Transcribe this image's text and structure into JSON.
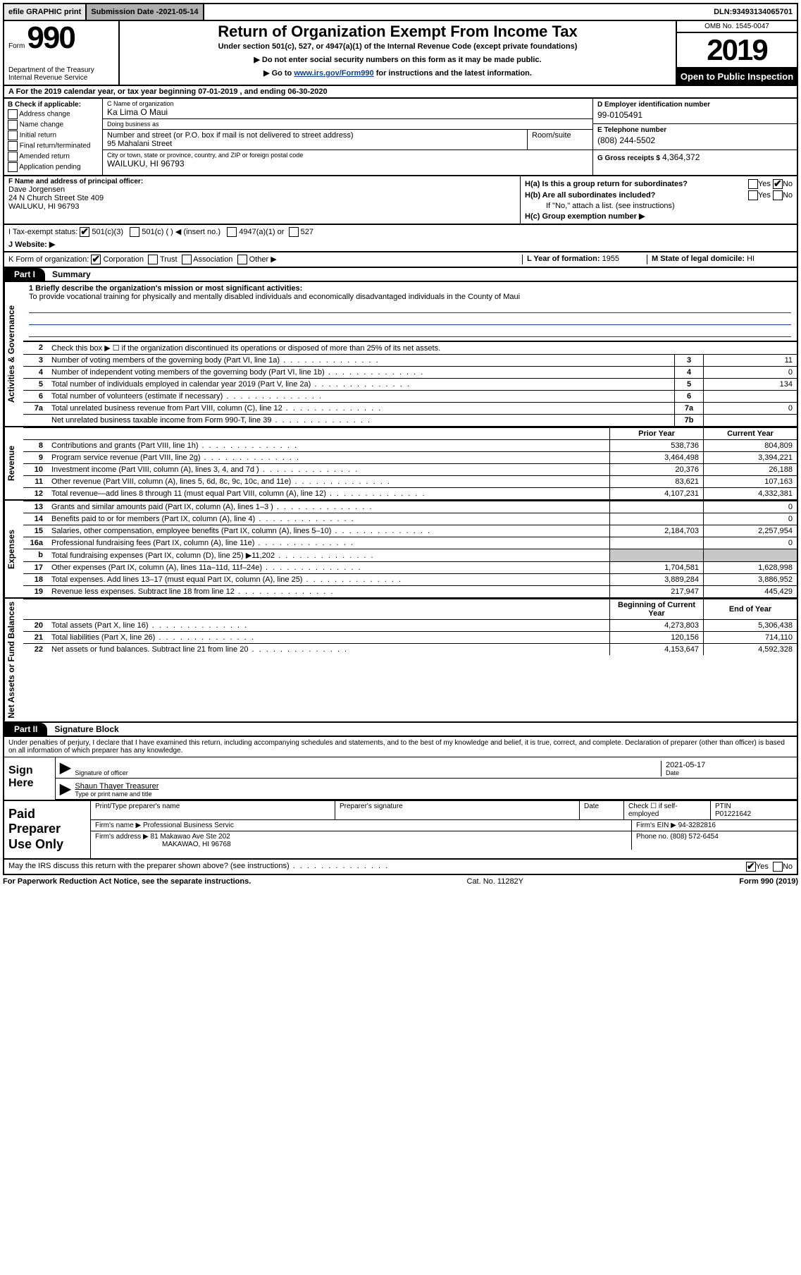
{
  "topbar": {
    "efile": "efile GRAPHIC print",
    "subdate_label": "Submission Date - ",
    "subdate": "2021-05-14",
    "dln_label": "DLN: ",
    "dln": "93493134065701"
  },
  "header": {
    "form_label": "Form",
    "form_number": "990",
    "dept": "Department of the Treasury\nInternal Revenue Service",
    "title": "Return of Organization Exempt From Income Tax",
    "sub": "Under section 501(c), 527, or 4947(a)(1) of the Internal Revenue Code (except private foundations)",
    "note1": "▶ Do not enter social security numbers on this form as it may be made public.",
    "note2_prefix": "▶ Go to ",
    "note2_link": "www.irs.gov/Form990",
    "note2_suffix": " for instructions and the latest information.",
    "omb": "OMB No. 1545-0047",
    "year": "2019",
    "inspect": "Open to Public Inspection"
  },
  "ty_line": "A For the 2019 calendar year, or tax year beginning 07-01-2019     , and ending 06-30-2020",
  "section_b": {
    "label": "B Check if applicable:",
    "items": [
      "Address change",
      "Name change",
      "Initial return",
      "Final return/terminated",
      "Amended return",
      "Application pending"
    ]
  },
  "section_c": {
    "name_label": "C Name of organization",
    "name": "Ka Lima O Maui",
    "dba_label": "Doing business as",
    "dba": "",
    "street_label": "Number and street (or P.O. box if mail is not delivered to street address)",
    "street": "95 Mahalani Street",
    "room_label": "Room/suite",
    "city_label": "City or town, state or province, country, and ZIP or foreign postal code",
    "city": "WAILUKU, HI  96793"
  },
  "section_d": {
    "label": "D Employer identification number",
    "value": "99-0105491"
  },
  "section_e": {
    "label": "E Telephone number",
    "value": "(808) 244-5502"
  },
  "section_g": {
    "label": "G Gross receipts $",
    "value": "4,364,372"
  },
  "section_f": {
    "label": "F  Name and address of principal officer:",
    "name": "Dave Jorgensen",
    "addr1": "24 N Church Street Ste 409",
    "addr2": "WAILUKU, HI  96793"
  },
  "section_h": {
    "ha_label": "H(a)  Is this a group return for subordinates?",
    "ha_yes": false,
    "ha_no": true,
    "hb_label": "H(b)  Are all subordinates included?",
    "hb_note": "If \"No,\" attach a list. (see instructions)",
    "hc_label": "H(c)  Group exemption number ▶"
  },
  "section_i": {
    "label": "I    Tax-exempt status:",
    "opts": [
      "501(c)(3)",
      "501(c) (  ) ◀ (insert no.)",
      "4947(a)(1) or",
      "527"
    ],
    "checked_index": 0
  },
  "section_j": {
    "label": "J    Website: ▶",
    "value": ""
  },
  "section_k": {
    "label": "K Form of organization:",
    "opts": [
      "Corporation",
      "Trust",
      "Association",
      "Other ▶"
    ],
    "checked_index": 0
  },
  "section_l": {
    "label": "L Year of formation:",
    "value": "1955"
  },
  "section_m": {
    "label": "M State of legal domicile:",
    "value": "HI"
  },
  "parts": {
    "part1": "Part I",
    "part1_title": "Summary",
    "part2": "Part II",
    "part2_title": "Signature Block"
  },
  "sidebars": {
    "gov": "Activities & Governance",
    "rev": "Revenue",
    "exp": "Expenses",
    "net": "Net Assets or Fund Balances"
  },
  "mission": {
    "label": "1   Briefly describe the organization's mission or most significant activities:",
    "text": "To provide vocational training for physically and mentally disabled individuals and economically disadvantaged individuals in the County of Maui"
  },
  "gov_lines": {
    "l2": "Check this box ▶ ☐  if the organization discontinued its operations or disposed of more than 25% of its net assets.",
    "l3": {
      "txt": "Number of voting members of the governing body (Part VI, line 1a)",
      "n": "3",
      "v": "11"
    },
    "l4": {
      "txt": "Number of independent voting members of the governing body (Part VI, line 1b)",
      "n": "4",
      "v": "0"
    },
    "l5": {
      "txt": "Total number of individuals employed in calendar year 2019 (Part V, line 2a)",
      "n": "5",
      "v": "134"
    },
    "l6": {
      "txt": "Total number of volunteers (estimate if necessary)",
      "n": "6",
      "v": ""
    },
    "l7a": {
      "txt": "Total unrelated business revenue from Part VIII, column (C), line 12",
      "n": "7a",
      "v": "0"
    },
    "l7b": {
      "txt": "Net unrelated business taxable income from Form 990-T, line 39",
      "n": "7b",
      "v": ""
    }
  },
  "col_hdrs": {
    "prior": "Prior Year",
    "current": "Current Year",
    "boy": "Beginning of Current Year",
    "eoy": "End of Year"
  },
  "rev_lines": [
    {
      "ln": "8",
      "txt": "Contributions and grants (Part VIII, line 1h)",
      "py": "538,736",
      "cy": "804,809"
    },
    {
      "ln": "9",
      "txt": "Program service revenue (Part VIII, line 2g)",
      "py": "3,464,498",
      "cy": "3,394,221"
    },
    {
      "ln": "10",
      "txt": "Investment income (Part VIII, column (A), lines 3, 4, and 7d )",
      "py": "20,376",
      "cy": "26,188"
    },
    {
      "ln": "11",
      "txt": "Other revenue (Part VIII, column (A), lines 5, 6d, 8c, 9c, 10c, and 11e)",
      "py": "83,621",
      "cy": "107,163"
    },
    {
      "ln": "12",
      "txt": "Total revenue—add lines 8 through 11 (must equal Part VIII, column (A), line 12)",
      "py": "4,107,231",
      "cy": "4,332,381"
    }
  ],
  "exp_lines": [
    {
      "ln": "13",
      "txt": "Grants and similar amounts paid (Part IX, column (A), lines 1–3 )",
      "py": "",
      "cy": "0"
    },
    {
      "ln": "14",
      "txt": "Benefits paid to or for members (Part IX, column (A), line 4)",
      "py": "",
      "cy": "0"
    },
    {
      "ln": "15",
      "txt": "Salaries, other compensation, employee benefits (Part IX, column (A), lines 5–10)",
      "py": "2,184,703",
      "cy": "2,257,954"
    },
    {
      "ln": "16a",
      "txt": "Professional fundraising fees (Part IX, column (A), line 11e)",
      "py": "",
      "cy": "0"
    },
    {
      "ln": "b",
      "txt": "Total fundraising expenses (Part IX, column (D), line 25) ▶11,202",
      "py": "GREY",
      "cy": "GREY"
    },
    {
      "ln": "17",
      "txt": "Other expenses (Part IX, column (A), lines 11a–11d, 11f–24e)",
      "py": "1,704,581",
      "cy": "1,628,998"
    },
    {
      "ln": "18",
      "txt": "Total expenses. Add lines 13–17 (must equal Part IX, column (A), line 25)",
      "py": "3,889,284",
      "cy": "3,886,952"
    },
    {
      "ln": "19",
      "txt": "Revenue less expenses. Subtract line 18 from line 12",
      "py": "217,947",
      "cy": "445,429"
    }
  ],
  "net_lines": [
    {
      "ln": "20",
      "txt": "Total assets (Part X, line 16)",
      "py": "4,273,803",
      "cy": "5,306,438"
    },
    {
      "ln": "21",
      "txt": "Total liabilities (Part X, line 26)",
      "py": "120,156",
      "cy": "714,110"
    },
    {
      "ln": "22",
      "txt": "Net assets or fund balances. Subtract line 21 from line 20",
      "py": "4,153,647",
      "cy": "4,592,328"
    }
  ],
  "sig": {
    "decl": "Under penalties of perjury, I declare that I have examined this return, including accompanying schedules and statements, and to the best of my knowledge and belief, it is true, correct, and complete. Declaration of preparer (other than officer) is based on all information of which preparer has any knowledge.",
    "sign_here": "Sign Here",
    "sig_label": "Signature of officer",
    "date_label": "Date",
    "date": "2021-05-17",
    "name": "Shaun Thayer Treasurer",
    "name_label": "Type or print name and title"
  },
  "prep": {
    "title": "Paid Preparer Use Only",
    "name_label": "Print/Type preparer's name",
    "sig_label": "Preparer's signature",
    "date_label": "Date",
    "check_label": "Check ☐ if self-employed",
    "ptin_label": "PTIN",
    "ptin": "P01221642",
    "firm_name_label": "Firm's name    ▶",
    "firm_name": "Professional Business Servic",
    "firm_ein_label": "Firm's EIN ▶",
    "firm_ein": "94-3282816",
    "firm_addr_label": "Firm's address ▶",
    "firm_addr1": "81 Makawao Ave Ste 202",
    "firm_addr2": "MAKAWAO, HI  96768",
    "phone_label": "Phone no.",
    "phone": "(808) 572-6454"
  },
  "discuss": {
    "q": "May the IRS discuss this return with the preparer shown above? (see instructions)",
    "yes": true,
    "no": false
  },
  "footer": {
    "paperwork": "For Paperwork Reduction Act Notice, see the separate instructions.",
    "cat": "Cat. No. 11282Y",
    "formrev": "Form 990 (2019)"
  }
}
